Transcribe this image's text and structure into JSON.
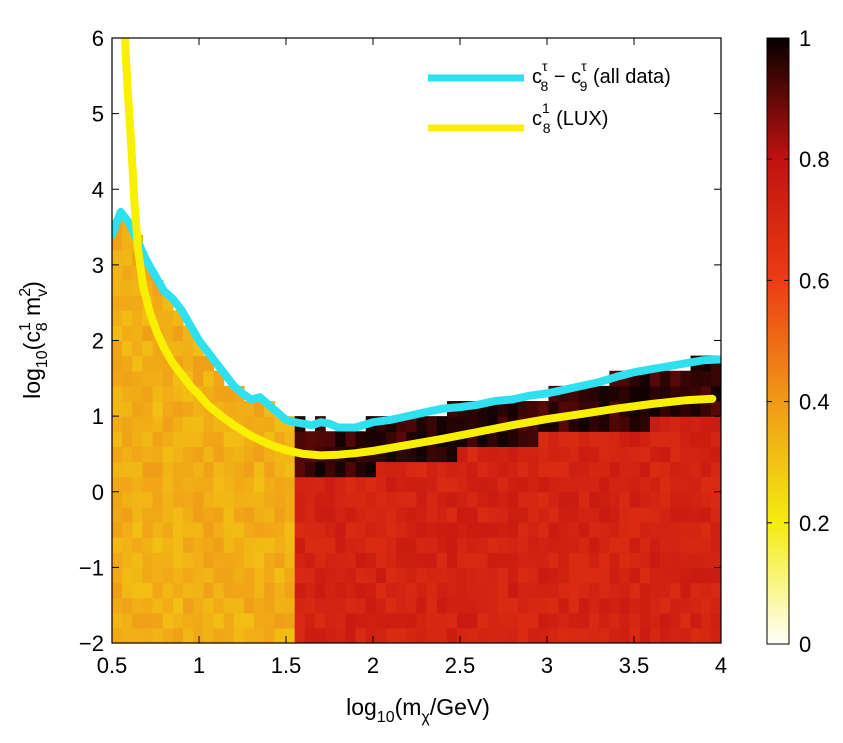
{
  "chart_data": {
    "type": "heatmap",
    "x": {
      "label_prefix": "log",
      "label_sub": "10",
      "label_main": "(m",
      "label_sub2": "χ",
      "label_suffix": "/GeV)",
      "lim": [
        0.5,
        4
      ],
      "ticks": [
        0.5,
        1,
        1.5,
        2,
        2.5,
        3,
        3.5,
        4
      ],
      "tick_labels": [
        "0.5",
        "1",
        "1.5",
        "2",
        "2.5",
        "3",
        "3.5",
        "4"
      ]
    },
    "y": {
      "label_prefix": "log",
      "label_sub": "10",
      "label_paren": "(c",
      "label_sup1": "1",
      "label_sub8": "8",
      "label_m": " m",
      "label_sup2": "2",
      "label_subv": "v",
      "label_close": ")",
      "lim": [
        -2,
        6
      ],
      "ticks": [
        -2,
        -1,
        0,
        1,
        2,
        3,
        4,
        5,
        6
      ],
      "tick_labels": [
        "−2",
        "−1",
        "0",
        "1",
        "2",
        "3",
        "4",
        "5",
        "6"
      ]
    },
    "colorbar": {
      "range": [
        0,
        1
      ],
      "ticks": [
        0,
        0.2,
        0.4,
        0.6,
        0.8,
        1
      ],
      "tick_labels": [
        "0",
        "0.2",
        "0.4",
        "0.6",
        "0.8",
        "1"
      ],
      "colormap": "hot (reversed)"
    },
    "grid": {
      "nx": 60,
      "ny": 40
    },
    "heatmap_model": {
      "low_mass_value": 0.35,
      "high_mass_value": 0.72,
      "transition_log_mass": 1.55,
      "ridge_peak_value": 1.0
    },
    "series": [
      {
        "name": "c8tau_minus_c9tau_all_data",
        "legend_main": "c",
        "legend_sup": "τ",
        "legend_sub": "8",
        "legend_mid": " − c",
        "legend_sup2": "τ",
        "legend_sub2": "9",
        "legend_tail": " (all data)",
        "color": "#2fe0f0",
        "x": [
          0.5,
          0.55,
          0.6,
          0.65,
          0.7,
          0.75,
          0.8,
          0.85,
          0.9,
          0.95,
          1.0,
          1.05,
          1.1,
          1.15,
          1.2,
          1.25,
          1.3,
          1.35,
          1.4,
          1.45,
          1.5,
          1.55,
          1.6,
          1.65,
          1.7,
          1.75,
          1.8,
          1.9,
          2.0,
          2.1,
          2.2,
          2.3,
          2.4,
          2.5,
          2.6,
          2.7,
          2.8,
          2.9,
          3.0,
          3.1,
          3.2,
          3.3,
          3.4,
          3.5,
          3.6,
          3.7,
          3.8,
          3.9,
          4.0
        ],
        "y": [
          3.4,
          3.7,
          3.55,
          3.3,
          3.05,
          2.85,
          2.65,
          2.55,
          2.4,
          2.2,
          2.0,
          1.85,
          1.7,
          1.55,
          1.4,
          1.3,
          1.22,
          1.25,
          1.15,
          1.05,
          0.95,
          0.92,
          0.9,
          0.88,
          0.92,
          0.9,
          0.85,
          0.85,
          0.92,
          0.95,
          1.0,
          1.05,
          1.1,
          1.12,
          1.15,
          1.2,
          1.22,
          1.27,
          1.3,
          1.35,
          1.4,
          1.45,
          1.52,
          1.58,
          1.62,
          1.66,
          1.7,
          1.74,
          1.75
        ]
      },
      {
        "name": "c8_1_LUX",
        "legend_main": "c",
        "legend_sup": "1",
        "legend_sub": "8",
        "legend_tail": " (LUX)",
        "color": "#f8f000",
        "x": [
          0.575,
          0.59,
          0.61,
          0.63,
          0.65,
          0.68,
          0.72,
          0.76,
          0.8,
          0.85,
          0.9,
          0.95,
          1.0,
          1.05,
          1.1,
          1.2,
          1.3,
          1.4,
          1.5,
          1.6,
          1.7,
          1.8,
          1.9,
          2.0,
          2.2,
          2.4,
          2.6,
          2.8,
          3.0,
          3.2,
          3.4,
          3.6,
          3.8,
          3.95
        ],
        "y": [
          6.0,
          5.3,
          4.6,
          3.8,
          3.2,
          2.7,
          2.35,
          2.1,
          1.9,
          1.7,
          1.55,
          1.4,
          1.28,
          1.15,
          1.05,
          0.88,
          0.74,
          0.63,
          0.55,
          0.5,
          0.48,
          0.49,
          0.51,
          0.54,
          0.62,
          0.7,
          0.79,
          0.88,
          0.96,
          1.03,
          1.1,
          1.16,
          1.21,
          1.23
        ]
      }
    ]
  }
}
